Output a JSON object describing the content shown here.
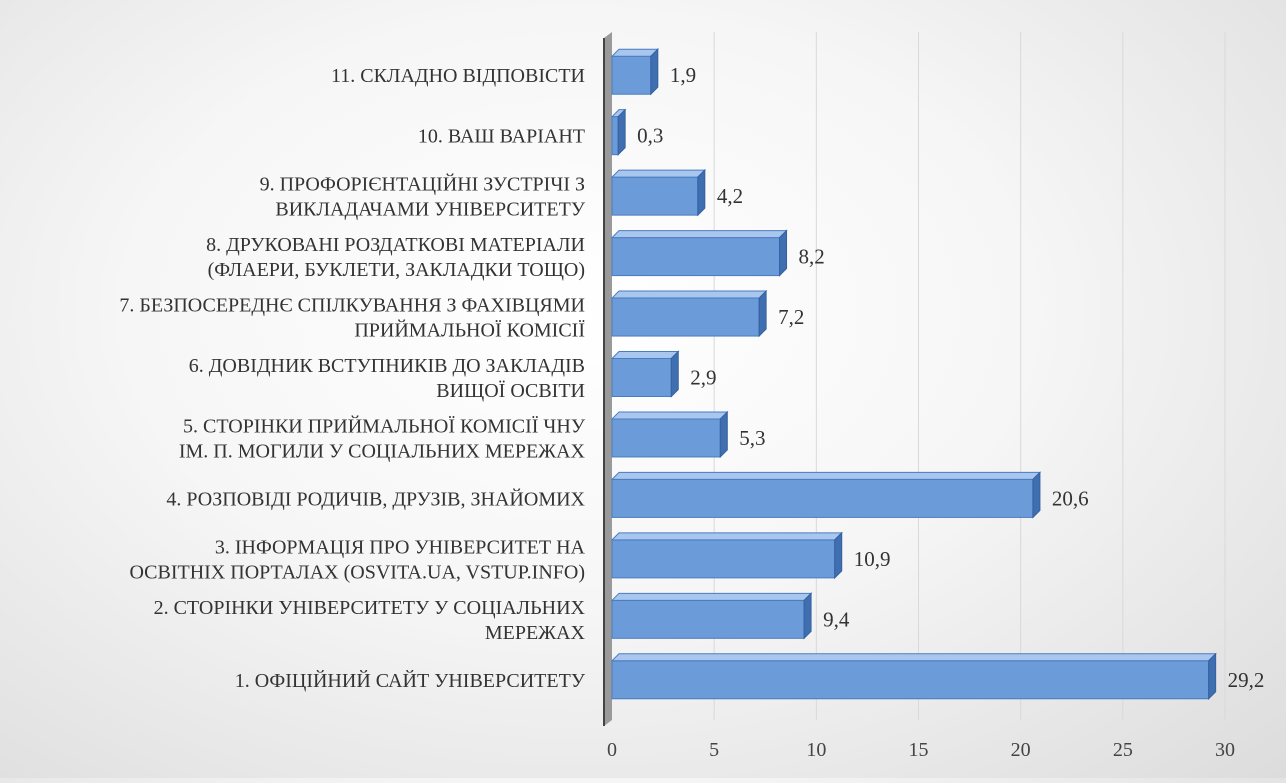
{
  "chart_data": {
    "type": "bar",
    "orientation": "horizontal",
    "style": "3d",
    "colors": {
      "bar": "#6b9bd8",
      "bar_top": "#a9c6ee",
      "bar_side": "#3f6fb0",
      "axis_wall": "#9a9a9a",
      "grid": "#d9d9d9"
    },
    "categories": [
      [
        "1. ОФІЦІЙНИЙ САЙТ УНІВЕРСИТЕТУ"
      ],
      [
        "2. СТОРІНКИ УНІВЕРСИТЕТУ У СОЦІАЛЬНИХ",
        "МЕРЕЖАХ"
      ],
      [
        "3. ІНФОРМАЦІЯ ПРО УНІВЕРСИТЕТ НА",
        "ОСВІТНІХ ПОРТАЛАХ (OSVITA.UA, VSTUP.INFO)"
      ],
      [
        "4. РОЗПОВІДІ РОДИЧІВ, ДРУЗІВ, ЗНАЙОМИХ"
      ],
      [
        "5. СТОРІНКИ ПРИЙМАЛЬНОЇ КОМІСІЇ ЧНУ",
        "ІМ. П. МОГИЛИ У СОЦІАЛЬНИХ МЕРЕЖАХ"
      ],
      [
        "6. ДОВІДНИК ВСТУПНИКІВ ДО ЗАКЛАДІВ",
        "ВИЩОЇ ОСВІТИ"
      ],
      [
        "7. БЕЗПОСЕРЕДНЄ СПІЛКУВАННЯ З ФАХІВЦЯМИ",
        "ПРИЙМАЛЬНОЇ КОМІСІЇ"
      ],
      [
        "8. ДРУКОВАНІ РОЗДАТКОВІ МАТЕРІАЛИ",
        "(ФЛАЕРИ, БУКЛЕТИ, ЗАКЛАДКИ ТОЩО)"
      ],
      [
        "9. ПРОФОРІЄНТАЦІЙНІ ЗУСТРІЧІ З",
        "ВИКЛАДАЧАМИ УНІВЕРСИТЕТУ"
      ],
      [
        "10. ВАШ ВАРІАНТ"
      ],
      [
        "11. СКЛАДНО ВІДПОВІСТИ"
      ]
    ],
    "values": [
      29.2,
      9.4,
      10.9,
      20.6,
      5.3,
      2.9,
      7.2,
      8.2,
      4.2,
      0.3,
      1.9
    ],
    "value_labels": [
      "29,2",
      "9,4",
      "10,9",
      "20,6",
      "5,3",
      "2,9",
      "7,2",
      "8,2",
      "4,2",
      "0,3",
      "1,9"
    ],
    "xlim": [
      0,
      30
    ],
    "xticks": [
      0,
      5,
      10,
      15,
      20,
      25,
      30
    ],
    "xtick_labels": [
      "0",
      "5",
      "10",
      "15",
      "20",
      "25",
      "30"
    ],
    "title": "",
    "xlabel": "",
    "ylabel": "",
    "grid": true,
    "legend": "none"
  }
}
